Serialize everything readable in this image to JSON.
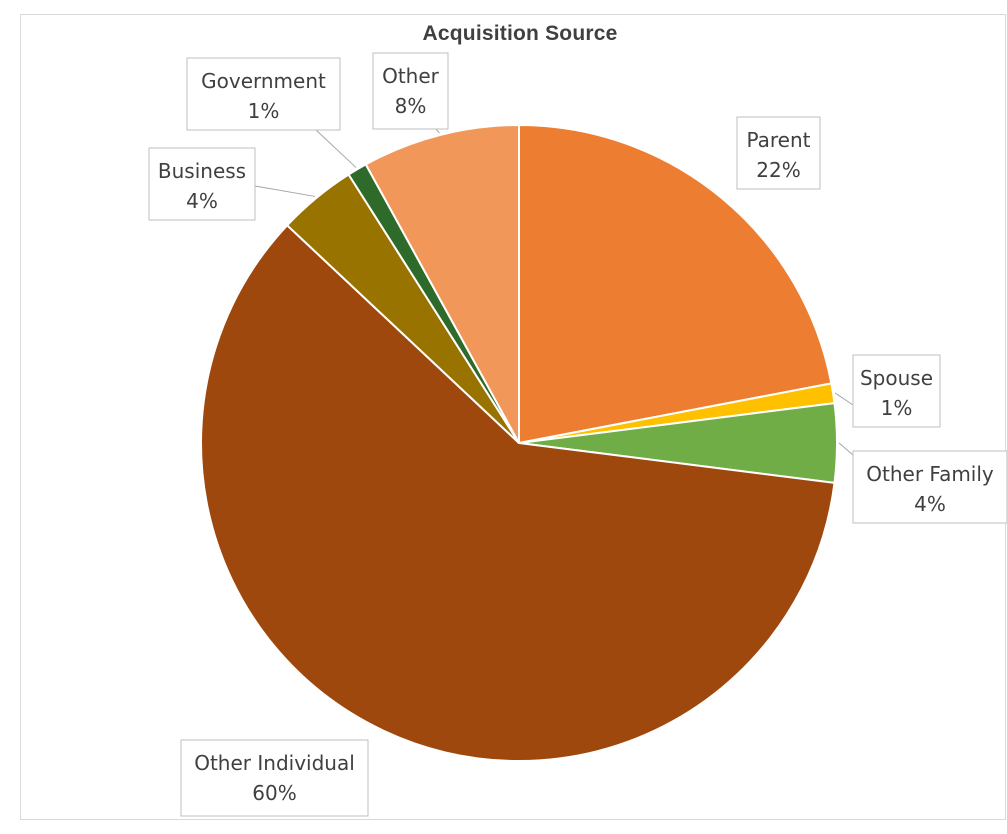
{
  "chart_data": {
    "type": "pie",
    "title": "Acquisition Source",
    "slices": [
      {
        "name": "Parent",
        "value": 22,
        "label": "22%",
        "color": "#ED7D31"
      },
      {
        "name": "Spouse",
        "value": 1,
        "label": "1%",
        "color": "#FFC000"
      },
      {
        "name": "Other Family",
        "value": 4,
        "label": "4%",
        "color": "#70AD47"
      },
      {
        "name": "Other Individual",
        "value": 60,
        "label": "60%",
        "color": "#9E480E"
      },
      {
        "name": "Business",
        "value": 4,
        "label": "4%",
        "color": "#997300"
      },
      {
        "name": "Government",
        "value": 1,
        "label": "1%",
        "color": "#2E6B2A"
      },
      {
        "name": "Other",
        "value": 8,
        "label": "8%",
        "color": "#F1975A"
      }
    ],
    "legend": "none",
    "data_labels": "category and percentage with callouts"
  }
}
